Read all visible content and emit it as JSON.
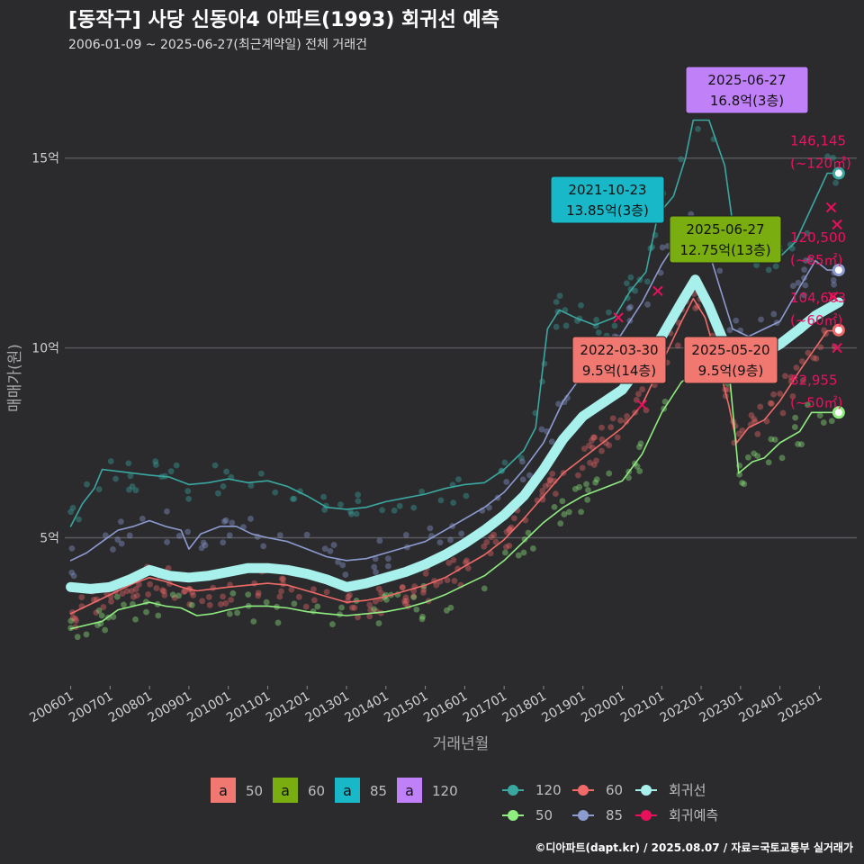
{
  "title": "[동작구] 사당 신동아4 아파트(1993) 회귀선 예측",
  "subtitle": "2006-01-09 ~ 2025-06-27(최근계약일) 전체 거래건",
  "caption": "©디아파트(dapt.kr) / 2025.08.07 / 자료=국토교통부 실거래가",
  "chart_data": {
    "type": "line",
    "xlabel": "거래년월",
    "ylabel": "매매가(원)",
    "x_ticks": [
      "200601",
      "200701",
      "200801",
      "200901",
      "201001",
      "201101",
      "201201",
      "201301",
      "201401",
      "201501",
      "201601",
      "201701",
      "201801",
      "201901",
      "202001",
      "202101",
      "202201",
      "202301",
      "202401",
      "202501"
    ],
    "y_ticks": [
      {
        "value": 5,
        "label": "5억"
      },
      {
        "value": 10,
        "label": "10억"
      },
      {
        "value": 15,
        "label": "15억"
      }
    ],
    "xlim": [
      2005.85,
      2025.95
    ],
    "ylim": [
      1.1,
      17.6
    ],
    "colors": {
      "s50": "#90ee80",
      "s60": "#f06a68",
      "s85": "#8c9bd0",
      "s120": "#3aa8a0",
      "reg": "#a8f0ec",
      "pred": "#e8105a"
    },
    "series": [
      {
        "name": "120",
        "key": "s120",
        "points": [
          [
            2006.0,
            5.3
          ],
          [
            2006.3,
            5.9
          ],
          [
            2006.6,
            6.3
          ],
          [
            2006.8,
            6.8
          ],
          [
            2007.2,
            6.75
          ],
          [
            2007.6,
            6.7
          ],
          [
            2008.0,
            6.65
          ],
          [
            2008.5,
            6.6
          ],
          [
            2009.0,
            6.4
          ],
          [
            2009.5,
            6.45
          ],
          [
            2010.0,
            6.55
          ],
          [
            2010.5,
            6.45
          ],
          [
            2011.0,
            6.5
          ],
          [
            2011.5,
            6.35
          ],
          [
            2012.0,
            6.1
          ],
          [
            2012.5,
            5.8
          ],
          [
            2013.0,
            5.75
          ],
          [
            2013.5,
            5.8
          ],
          [
            2014.0,
            5.95
          ],
          [
            2014.5,
            6.05
          ],
          [
            2015.0,
            6.15
          ],
          [
            2015.5,
            6.3
          ],
          [
            2016.0,
            6.4
          ],
          [
            2016.5,
            6.45
          ],
          [
            2017.0,
            6.8
          ],
          [
            2017.5,
            7.3
          ],
          [
            2017.8,
            7.9
          ],
          [
            2018.1,
            10.5
          ],
          [
            2018.4,
            11.0
          ],
          [
            2018.8,
            10.8
          ],
          [
            2019.3,
            10.6
          ],
          [
            2019.8,
            10.8
          ],
          [
            2020.2,
            11.5
          ],
          [
            2020.6,
            12.0
          ],
          [
            2020.9,
            13.5
          ],
          [
            2021.3,
            14.0
          ],
          [
            2021.6,
            15.0
          ],
          [
            2021.8,
            16.0
          ],
          [
            2022.2,
            16.0
          ],
          [
            2022.6,
            14.8
          ],
          [
            2022.9,
            12.5
          ],
          [
            2023.2,
            12.8
          ],
          [
            2023.5,
            12.5
          ],
          [
            2024.0,
            12.4
          ],
          [
            2024.4,
            12.8
          ],
          [
            2024.8,
            13.7
          ],
          [
            2025.2,
            14.6
          ],
          [
            2025.49,
            14.6
          ]
        ]
      },
      {
        "name": "85",
        "key": "s85",
        "points": [
          [
            2006.0,
            4.4
          ],
          [
            2006.4,
            4.6
          ],
          [
            2006.8,
            4.9
          ],
          [
            2007.2,
            5.2
          ],
          [
            2007.6,
            5.3
          ],
          [
            2008.0,
            5.45
          ],
          [
            2008.4,
            5.3
          ],
          [
            2008.8,
            5.2
          ],
          [
            2009.0,
            4.7
          ],
          [
            2009.3,
            5.1
          ],
          [
            2009.8,
            5.3
          ],
          [
            2010.2,
            5.3
          ],
          [
            2010.6,
            5.1
          ],
          [
            2011.0,
            5.0
          ],
          [
            2011.5,
            4.9
          ],
          [
            2012.0,
            4.7
          ],
          [
            2012.5,
            4.5
          ],
          [
            2013.0,
            4.4
          ],
          [
            2013.5,
            4.45
          ],
          [
            2014.0,
            4.6
          ],
          [
            2014.5,
            4.75
          ],
          [
            2015.0,
            4.9
          ],
          [
            2015.5,
            5.2
          ],
          [
            2016.0,
            5.5
          ],
          [
            2016.5,
            5.8
          ],
          [
            2017.0,
            6.2
          ],
          [
            2017.5,
            6.8
          ],
          [
            2018.0,
            7.5
          ],
          [
            2018.5,
            8.6
          ],
          [
            2019.0,
            9.3
          ],
          [
            2019.5,
            9.6
          ],
          [
            2020.0,
            10.4
          ],
          [
            2020.5,
            11.2
          ],
          [
            2021.0,
            12.2
          ],
          [
            2021.5,
            13.0
          ],
          [
            2022.0,
            13.2
          ],
          [
            2022.5,
            11.5
          ],
          [
            2022.8,
            10.5
          ],
          [
            2023.2,
            10.3
          ],
          [
            2023.6,
            10.5
          ],
          [
            2024.0,
            10.7
          ],
          [
            2024.5,
            11.6
          ],
          [
            2024.9,
            12.3
          ],
          [
            2025.2,
            12.05
          ],
          [
            2025.49,
            12.05
          ]
        ]
      },
      {
        "name": "60",
        "key": "s60",
        "points": [
          [
            2006.0,
            3.0
          ],
          [
            2006.4,
            3.2
          ],
          [
            2006.8,
            3.4
          ],
          [
            2007.2,
            3.6
          ],
          [
            2007.6,
            3.8
          ],
          [
            2008.0,
            3.95
          ],
          [
            2008.4,
            3.85
          ],
          [
            2008.8,
            3.7
          ],
          [
            2009.2,
            3.6
          ],
          [
            2009.6,
            3.65
          ],
          [
            2010.0,
            3.7
          ],
          [
            2010.5,
            3.75
          ],
          [
            2011.0,
            3.8
          ],
          [
            2011.5,
            3.75
          ],
          [
            2012.0,
            3.6
          ],
          [
            2012.5,
            3.45
          ],
          [
            2013.0,
            3.3
          ],
          [
            2013.5,
            3.35
          ],
          [
            2014.0,
            3.45
          ],
          [
            2014.5,
            3.6
          ],
          [
            2015.0,
            3.75
          ],
          [
            2015.5,
            3.95
          ],
          [
            2016.0,
            4.25
          ],
          [
            2016.5,
            4.55
          ],
          [
            2017.0,
            4.95
          ],
          [
            2017.5,
            5.5
          ],
          [
            2018.0,
            6.1
          ],
          [
            2018.5,
            6.7
          ],
          [
            2019.0,
            7.1
          ],
          [
            2019.5,
            7.5
          ],
          [
            2020.0,
            7.9
          ],
          [
            2020.5,
            8.5
          ],
          [
            2021.0,
            9.6
          ],
          [
            2021.5,
            10.7
          ],
          [
            2021.8,
            11.3
          ],
          [
            2022.1,
            10.8
          ],
          [
            2022.4,
            9.7
          ],
          [
            2022.7,
            8.5
          ],
          [
            2022.9,
            7.5
          ],
          [
            2023.2,
            7.9
          ],
          [
            2023.6,
            8.1
          ],
          [
            2024.0,
            8.6
          ],
          [
            2024.5,
            9.4
          ],
          [
            2024.9,
            10.0
          ],
          [
            2025.2,
            10.45
          ],
          [
            2025.49,
            10.45
          ]
        ]
      },
      {
        "name": "50",
        "key": "s50",
        "points": [
          [
            2006.0,
            2.6
          ],
          [
            2006.4,
            2.7
          ],
          [
            2006.8,
            2.8
          ],
          [
            2007.2,
            3.1
          ],
          [
            2007.6,
            3.2
          ],
          [
            2008.0,
            3.3
          ],
          [
            2008.4,
            3.2
          ],
          [
            2008.8,
            3.15
          ],
          [
            2009.2,
            2.95
          ],
          [
            2009.6,
            3.0
          ],
          [
            2010.0,
            3.1
          ],
          [
            2010.5,
            3.2
          ],
          [
            2011.0,
            3.2
          ],
          [
            2011.5,
            3.15
          ],
          [
            2012.0,
            3.05
          ],
          [
            2012.5,
            3.0
          ],
          [
            2013.0,
            2.95
          ],
          [
            2013.5,
            3.0
          ],
          [
            2014.0,
            3.05
          ],
          [
            2014.5,
            3.15
          ],
          [
            2015.0,
            3.3
          ],
          [
            2015.5,
            3.5
          ],
          [
            2016.0,
            3.75
          ],
          [
            2016.5,
            4.0
          ],
          [
            2017.0,
            4.4
          ],
          [
            2017.5,
            4.9
          ],
          [
            2018.0,
            5.4
          ],
          [
            2018.5,
            5.8
          ],
          [
            2019.0,
            6.1
          ],
          [
            2019.5,
            6.3
          ],
          [
            2020.0,
            6.5
          ],
          [
            2020.5,
            7.2
          ],
          [
            2021.0,
            8.3
          ],
          [
            2021.5,
            9.1
          ],
          [
            2021.9,
            9.4
          ],
          [
            2022.3,
            9.5
          ],
          [
            2022.7,
            9.5
          ],
          [
            2022.95,
            6.7
          ],
          [
            2023.3,
            7.0
          ],
          [
            2023.6,
            7.1
          ],
          [
            2024.0,
            7.5
          ],
          [
            2024.5,
            7.8
          ],
          [
            2024.8,
            8.3
          ],
          [
            2025.2,
            8.3
          ],
          [
            2025.49,
            8.3
          ]
        ]
      },
      {
        "name": "회귀선",
        "key": "reg",
        "points": [
          [
            2006.0,
            3.7
          ],
          [
            2006.5,
            3.65
          ],
          [
            2007.0,
            3.7
          ],
          [
            2007.5,
            3.9
          ],
          [
            2008.0,
            4.15
          ],
          [
            2008.5,
            4.0
          ],
          [
            2009.0,
            3.95
          ],
          [
            2009.5,
            4.0
          ],
          [
            2010.0,
            4.1
          ],
          [
            2010.5,
            4.2
          ],
          [
            2011.0,
            4.2
          ],
          [
            2011.5,
            4.15
          ],
          [
            2012.0,
            4.05
          ],
          [
            2012.5,
            3.9
          ],
          [
            2013.0,
            3.7
          ],
          [
            2013.5,
            3.8
          ],
          [
            2014.0,
            3.95
          ],
          [
            2014.5,
            4.1
          ],
          [
            2015.0,
            4.3
          ],
          [
            2015.5,
            4.55
          ],
          [
            2016.0,
            4.85
          ],
          [
            2016.5,
            5.2
          ],
          [
            2017.0,
            5.6
          ],
          [
            2017.5,
            6.1
          ],
          [
            2018.0,
            6.8
          ],
          [
            2018.5,
            7.6
          ],
          [
            2019.0,
            8.2
          ],
          [
            2019.5,
            8.55
          ],
          [
            2020.0,
            8.9
          ],
          [
            2020.5,
            9.6
          ],
          [
            2021.0,
            10.3
          ],
          [
            2021.5,
            11.2
          ],
          [
            2021.85,
            11.8
          ],
          [
            2022.2,
            11.1
          ],
          [
            2022.6,
            10.1
          ],
          [
            2022.9,
            9.8
          ],
          [
            2023.2,
            9.75
          ],
          [
            2023.6,
            9.85
          ],
          [
            2024.0,
            10.1
          ],
          [
            2024.5,
            10.5
          ],
          [
            2024.9,
            10.85
          ],
          [
            2025.49,
            11.2
          ]
        ]
      }
    ],
    "pred_points": [
      [
        2025.3,
        13.7
      ],
      [
        2025.45,
        13.25
      ],
      [
        2025.35,
        11.35
      ],
      [
        2025.45,
        10.0
      ],
      [
        2020.9,
        11.5
      ],
      [
        2019.9,
        10.8
      ],
      [
        2020.5,
        8.5
      ],
      [
        2022.35,
        9.9
      ]
    ],
    "end_labels": [
      {
        "key": "s120",
        "value": 14.6,
        "text1": "146,145",
        "text2": "(~120㎡)"
      },
      {
        "key": "s85",
        "value": 12.05,
        "text1": "120,500",
        "text2": "(~85㎡)"
      },
      {
        "key": "s60",
        "value": 10.47,
        "text1": "104,663",
        "text2": "(~60㎡)"
      },
      {
        "key": "s50",
        "value": 8.3,
        "text1": "82,955",
        "text2": "(~50㎡)"
      }
    ],
    "annotations": [
      {
        "date": "2025-06-27",
        "price": "16.8억(3층)",
        "color": "#c080f8",
        "x": 2025.49,
        "y": 16.8
      },
      {
        "date": "2021-10-23",
        "price": "13.85억(3층)",
        "color": "#18b8c8",
        "x": 2021.81,
        "y": 13.85
      },
      {
        "date": "2025-06-27",
        "price": "12.75억(13층)",
        "color": "#7aad10",
        "x": 2025.49,
        "y": 12.75
      },
      {
        "date": "2022-03-30",
        "price": "9.5억(14층)",
        "color": "#f07870",
        "x": 2022.24,
        "y": 9.5
      },
      {
        "date": "2025-05-20",
        "price": "9.5억(9층)",
        "color": "#f07870",
        "x": 2025.38,
        "y": 9.5
      }
    ],
    "legend_area": [
      {
        "glyph": "a",
        "label": "50",
        "color": "#f07870"
      },
      {
        "glyph": "a",
        "label": "60",
        "color": "#7aad10"
      },
      {
        "glyph": "a",
        "label": "85",
        "color": "#18b8c8"
      },
      {
        "glyph": "a",
        "label": "120",
        "color": "#c080f8"
      }
    ],
    "legend_lines": [
      {
        "label": "120",
        "color": "#3aa8a0"
      },
      {
        "label": "60",
        "color": "#f06a68"
      },
      {
        "label": "회귀선",
        "color": "#a8f0ec"
      },
      {
        "label": "50",
        "color": "#90ee80"
      },
      {
        "label": "85",
        "color": "#8c9bd0"
      },
      {
        "label": "회귀예측",
        "color": "#e8105a"
      }
    ]
  }
}
